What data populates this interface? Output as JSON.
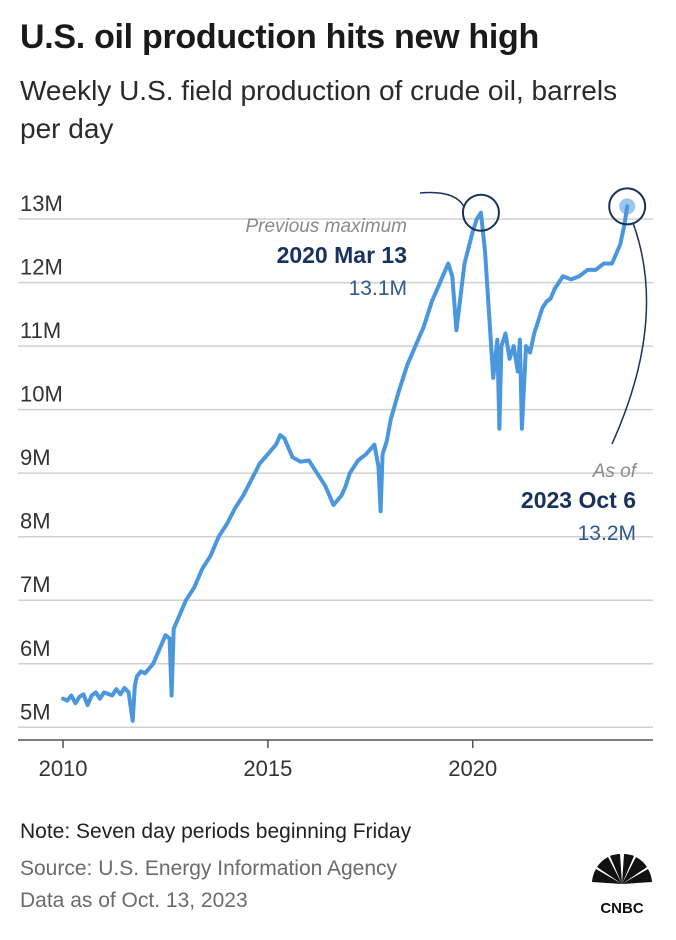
{
  "header": {
    "title": "U.S. oil production hits new high",
    "subtitle": "Weekly U.S. field production of crude oil, barrels per day"
  },
  "footer": {
    "note": "Note: Seven day periods beginning Friday",
    "source": "Source: U.S. Energy Information Agency",
    "data_as_of": "Data as of Oct. 13, 2023",
    "logo_text": "CNBC"
  },
  "colors": {
    "line": "#4a97dd",
    "highlight_text": "#17325e",
    "value_text": "#2e5a92",
    "grid": "#d0d0d0",
    "muted": "#8a8a8a"
  },
  "chart_data": {
    "type": "line",
    "title": "",
    "xlabel": "",
    "ylabel": "",
    "y_unit": "barrels per day",
    "xlim": [
      2008.9,
      2024.4
    ],
    "ylim": [
      4800000,
      13300000
    ],
    "yticks": [
      5000000,
      6000000,
      7000000,
      8000000,
      9000000,
      10000000,
      11000000,
      12000000,
      13000000
    ],
    "ytick_labels": [
      "5M",
      "6M",
      "7M",
      "8M",
      "9M",
      "10M",
      "11M",
      "12M",
      "13M"
    ],
    "xticks": [
      2010,
      2015,
      2020
    ],
    "xtick_labels": [
      "2010",
      "2015",
      "2020"
    ],
    "grid": "horizontal",
    "series": [
      {
        "name": "",
        "x": [
          2010.0,
          2010.1,
          2010.2,
          2010.3,
          2010.4,
          2010.5,
          2010.6,
          2010.7,
          2010.8,
          2010.9,
          2011.0,
          2011.2,
          2011.3,
          2011.4,
          2011.5,
          2011.6,
          2011.7,
          2011.75,
          2011.8,
          2011.9,
          2012.0,
          2012.2,
          2012.3,
          2012.4,
          2012.5,
          2012.6,
          2012.65,
          2012.7,
          2012.8,
          2013.0,
          2013.2,
          2013.4,
          2013.6,
          2013.8,
          2014.0,
          2014.2,
          2014.4,
          2014.6,
          2014.8,
          2015.0,
          2015.2,
          2015.3,
          2015.4,
          2015.6,
          2015.8,
          2016.0,
          2016.2,
          2016.4,
          2016.6,
          2016.8,
          2016.9,
          2017.0,
          2017.2,
          2017.4,
          2017.6,
          2017.7,
          2017.75,
          2017.8,
          2017.9,
          2018.0,
          2018.2,
          2018.4,
          2018.6,
          2018.8,
          2019.0,
          2019.2,
          2019.4,
          2019.5,
          2019.6,
          2019.8,
          2020.0,
          2020.1,
          2020.2,
          2020.3,
          2020.4,
          2020.5,
          2020.6,
          2020.65,
          2020.7,
          2020.8,
          2020.9,
          2021.0,
          2021.1,
          2021.15,
          2021.2,
          2021.3,
          2021.4,
          2021.5,
          2021.6,
          2021.7,
          2021.8,
          2021.9,
          2022.0,
          2022.1,
          2022.2,
          2022.4,
          2022.6,
          2022.8,
          2023.0,
          2023.2,
          2023.4,
          2023.6,
          2023.7,
          2023.77
        ],
        "values": [
          5450000,
          5420000,
          5500000,
          5380000,
          5480000,
          5520000,
          5350000,
          5500000,
          5550000,
          5450000,
          5550000,
          5500000,
          5600000,
          5520000,
          5620000,
          5550000,
          5100000,
          5650000,
          5800000,
          5880000,
          5850000,
          6000000,
          6150000,
          6300000,
          6450000,
          6400000,
          5500000,
          6550000,
          6700000,
          7000000,
          7200000,
          7500000,
          7700000,
          8000000,
          8200000,
          8450000,
          8650000,
          8900000,
          9150000,
          9300000,
          9450000,
          9600000,
          9550000,
          9250000,
          9180000,
          9200000,
          9000000,
          8800000,
          8500000,
          8650000,
          8800000,
          9000000,
          9200000,
          9300000,
          9450000,
          9100000,
          8400000,
          9300000,
          9500000,
          9850000,
          10300000,
          10700000,
          11000000,
          11300000,
          11700000,
          12000000,
          12300000,
          12100000,
          11250000,
          12300000,
          12800000,
          13000000,
          13100000,
          12500000,
          11500000,
          10500000,
          11100000,
          9700000,
          11000000,
          11200000,
          10800000,
          11000000,
          10600000,
          11100000,
          9700000,
          11000000,
          10900000,
          11200000,
          11400000,
          11600000,
          11700000,
          11750000,
          11900000,
          12000000,
          12100000,
          12050000,
          12100000,
          12200000,
          12200000,
          12300000,
          12300000,
          12600000,
          12900000,
          13200000
        ]
      }
    ],
    "annotations": [
      {
        "x": 2020.2,
        "y": 13100000,
        "label_top": "Previous maximum",
        "label_date": "2020 Mar 13",
        "label_value": "13.1M"
      },
      {
        "x": 2023.77,
        "y": 13200000,
        "label_top": "As of",
        "label_date": "2023 Oct 6",
        "label_value": "13.2M"
      }
    ]
  }
}
